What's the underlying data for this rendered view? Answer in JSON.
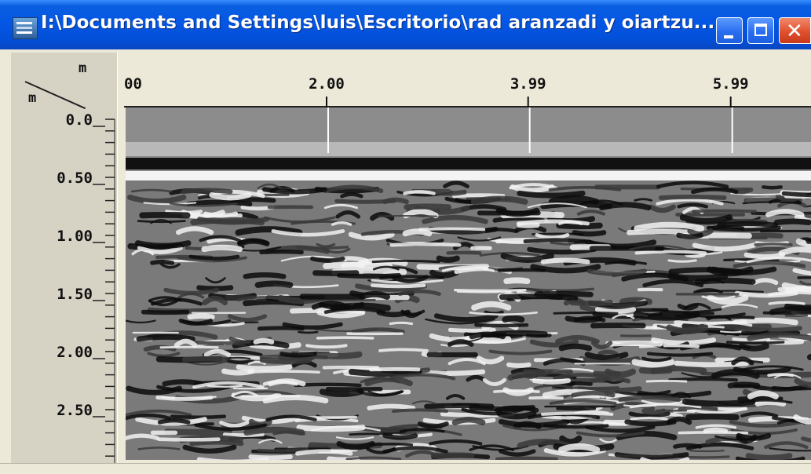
{
  "window": {
    "title": "I:\\Documents and Settings\\luis\\Escritorio\\rad aranzadi y oiartzu...",
    "icon": "radar-app-icon"
  },
  "controls": {
    "minimize": "minimize-icon",
    "maximize": "maximize-icon",
    "close": "close-icon"
  },
  "ruler": {
    "distance_unit": "m",
    "depth_unit": "m",
    "distance_ticks": [
      "00",
      "2.00",
      "3.99",
      "5.99"
    ],
    "depth_ticks": [
      "0.0",
      "0.50",
      "1.00",
      "1.50",
      "2.00",
      "2.50"
    ]
  },
  "radargram": {
    "colors": {
      "air": "#8c8c8c",
      "dark_band": "#111111",
      "bright_band": "#f4f4f4"
    },
    "marker_lines_m": [
      2.0,
      3.99,
      5.99
    ]
  }
}
